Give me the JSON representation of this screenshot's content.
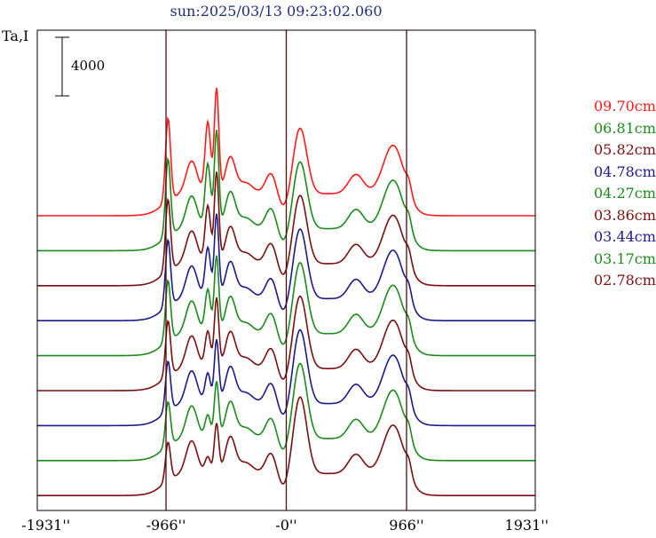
{
  "chart_data": {
    "type": "line",
    "title": "sun:2025/03/13 09:23:02.060",
    "ylabel": "Ta,I",
    "scale_bar_label": "4000",
    "xlim": [
      -2000,
      2000
    ],
    "x_ticks": [
      {
        "value": -1931,
        "label": "-1931''"
      },
      {
        "value": -966,
        "label": "-966''"
      },
      {
        "value": 0,
        "label": "-0''"
      },
      {
        "value": 966,
        "label": "966''"
      },
      {
        "value": 1931,
        "label": "1931''"
      }
    ],
    "vertical_lines": [
      -966,
      0,
      966
    ],
    "series": [
      {
        "name": "09.70cm",
        "color": "#ff1a1a"
      },
      {
        "name": "06.81cm",
        "color": "#1a8a1a"
      },
      {
        "name": "05.82cm",
        "color": "#7a0f0f"
      },
      {
        "name": "04.78cm",
        "color": "#1a1a8c"
      },
      {
        "name": "04.27cm",
        "color": "#1a8a1a"
      },
      {
        "name": "03.86cm",
        "color": "#7a0f0f"
      },
      {
        "name": "03.44cm",
        "color": "#1a1a8c"
      },
      {
        "name": "03.17cm",
        "color": "#1a8a1a"
      },
      {
        "name": "02.78cm",
        "color": "#7a0f0f"
      }
    ],
    "grid": false,
    "legend_position": "right"
  }
}
